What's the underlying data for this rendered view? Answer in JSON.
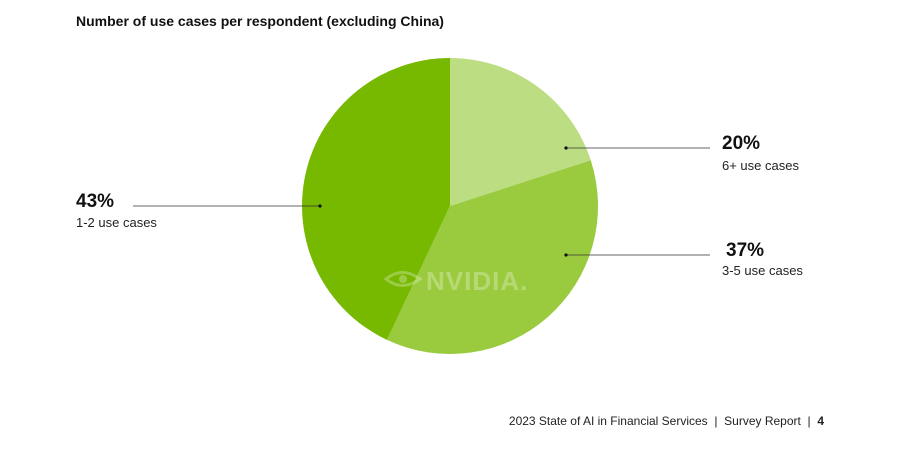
{
  "title": "Number of use cases per respondent (excluding China)",
  "chart_data": {
    "type": "pie",
    "title": "Number of use cases per respondent (excluding China)",
    "start_angle_deg": 0,
    "direction": "clockwise",
    "slices": [
      {
        "label": "6+ use cases",
        "value": 20,
        "value_label": "20%",
        "color": "#bcdd81"
      },
      {
        "label": "3-5 use cases",
        "value": 37,
        "value_label": "37%",
        "color": "#9acb3f"
      },
      {
        "label": "1-2 use cases",
        "value": 43,
        "value_label": "43%",
        "color": "#76b900"
      }
    ]
  },
  "watermark": "NVIDIA.",
  "footer": {
    "report": "2023 State of AI in Financial Services",
    "separator": "|",
    "type": "Survey Report",
    "page": "4"
  }
}
